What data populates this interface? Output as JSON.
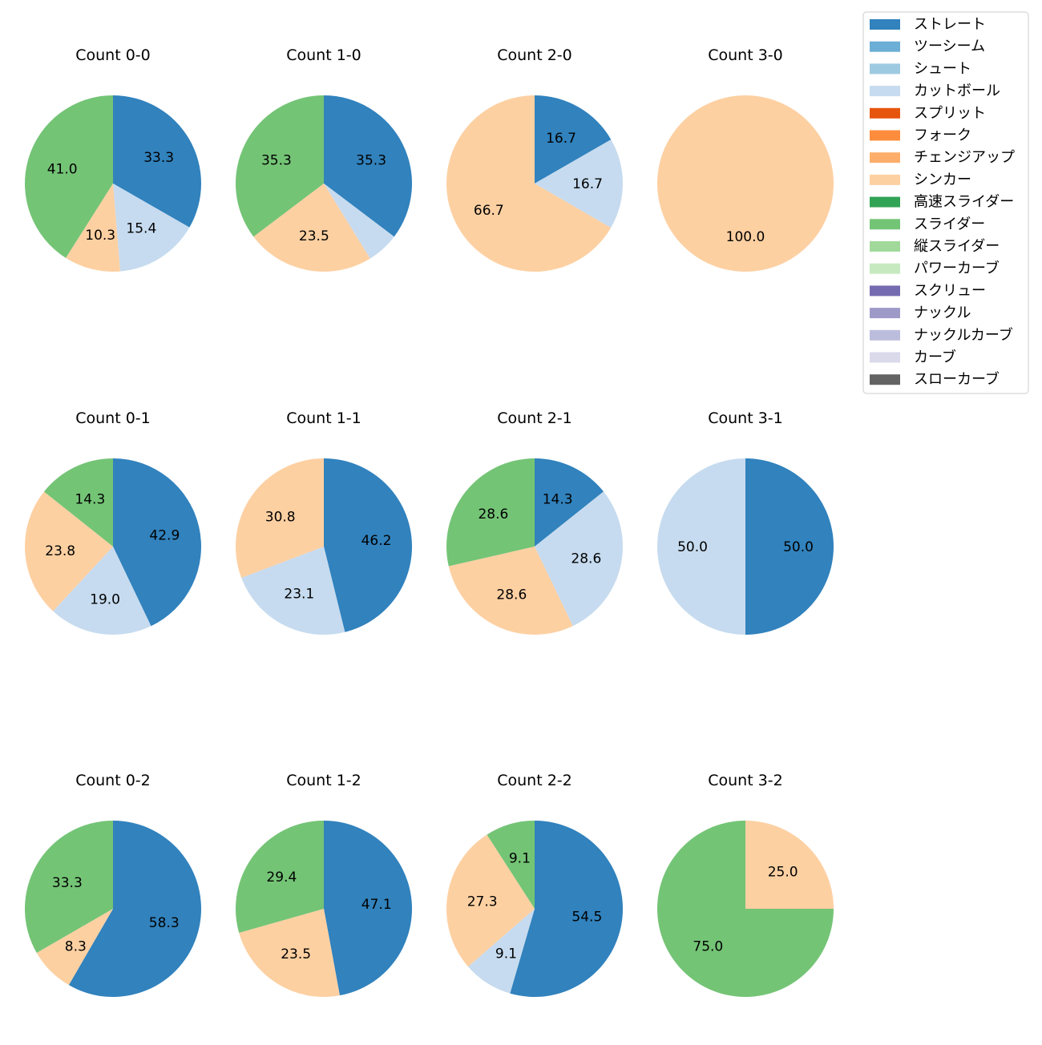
{
  "chart_data": {
    "type": "pie",
    "legend": {
      "position": "top-right",
      "entries": [
        {
          "name": "ストレート",
          "color": "#3182bd"
        },
        {
          "name": "ツーシーム",
          "color": "#6baed6"
        },
        {
          "name": "シュート",
          "color": "#9ecae1"
        },
        {
          "name": "カットボール",
          "color": "#c6dbef"
        },
        {
          "name": "スプリット",
          "color": "#e6550d"
        },
        {
          "name": "フォーク",
          "color": "#fd8d3c"
        },
        {
          "name": "チェンジアップ",
          "color": "#fdae6b"
        },
        {
          "name": "シンカー",
          "color": "#fdd0a2"
        },
        {
          "name": "高速スライダー",
          "color": "#31a354"
        },
        {
          "name": "スライダー",
          "color": "#74c476"
        },
        {
          "name": "縦スライダー",
          "color": "#a1d99b"
        },
        {
          "name": "パワーカーブ",
          "color": "#c7e9c0"
        },
        {
          "name": "スクリュー",
          "color": "#756bb1"
        },
        {
          "name": "ナックル",
          "color": "#9e9ac8"
        },
        {
          "name": "ナックルカーブ",
          "color": "#bcbddc"
        },
        {
          "name": "カーブ",
          "color": "#dadaeb"
        },
        {
          "name": "スローカーブ",
          "color": "#636363"
        }
      ]
    },
    "charts": [
      {
        "title": "Count 0-0",
        "slices": [
          {
            "label": "ストレート",
            "value": 33.3,
            "text": "33.3"
          },
          {
            "label": "カットボール",
            "value": 15.4,
            "text": "15.4"
          },
          {
            "label": "シンカー",
            "value": 10.3,
            "text": "10.3"
          },
          {
            "label": "スライダー",
            "value": 41.0,
            "text": "41.0"
          }
        ]
      },
      {
        "title": "Count 1-0",
        "slices": [
          {
            "label": "ストレート",
            "value": 35.3,
            "text": "35.3"
          },
          {
            "label": "カットボール",
            "value": 5.9,
            "text": ""
          },
          {
            "label": "シンカー",
            "value": 23.5,
            "text": "23.5"
          },
          {
            "label": "スライダー",
            "value": 35.3,
            "text": "35.3"
          }
        ]
      },
      {
        "title": "Count 2-0",
        "slices": [
          {
            "label": "ストレート",
            "value": 16.7,
            "text": "16.7"
          },
          {
            "label": "カットボール",
            "value": 16.7,
            "text": "16.7"
          },
          {
            "label": "シンカー",
            "value": 66.7,
            "text": "66.7"
          }
        ]
      },
      {
        "title": "Count 3-0",
        "slices": [
          {
            "label": "シンカー",
            "value": 100.0,
            "text": "100.0"
          }
        ]
      },
      {
        "title": "Count 0-1",
        "slices": [
          {
            "label": "ストレート",
            "value": 42.9,
            "text": "42.9"
          },
          {
            "label": "カットボール",
            "value": 19.0,
            "text": "19.0"
          },
          {
            "label": "シンカー",
            "value": 23.8,
            "text": "23.8"
          },
          {
            "label": "スライダー",
            "value": 14.3,
            "text": "14.3"
          }
        ]
      },
      {
        "title": "Count 1-1",
        "slices": [
          {
            "label": "ストレート",
            "value": 46.2,
            "text": "46.2"
          },
          {
            "label": "カットボール",
            "value": 23.1,
            "text": "23.1"
          },
          {
            "label": "シンカー",
            "value": 30.8,
            "text": "30.8"
          }
        ]
      },
      {
        "title": "Count 2-1",
        "slices": [
          {
            "label": "ストレート",
            "value": 14.3,
            "text": "14.3"
          },
          {
            "label": "カットボール",
            "value": 28.6,
            "text": "28.6"
          },
          {
            "label": "シンカー",
            "value": 28.6,
            "text": "28.6"
          },
          {
            "label": "スライダー",
            "value": 28.6,
            "text": "28.6"
          }
        ]
      },
      {
        "title": "Count 3-1",
        "slices": [
          {
            "label": "ストレート",
            "value": 50.0,
            "text": "50.0"
          },
          {
            "label": "カットボール",
            "value": 50.0,
            "text": "50.0"
          }
        ]
      },
      {
        "title": "Count 0-2",
        "slices": [
          {
            "label": "ストレート",
            "value": 58.3,
            "text": "58.3"
          },
          {
            "label": "シンカー",
            "value": 8.3,
            "text": "8.3"
          },
          {
            "label": "スライダー",
            "value": 33.3,
            "text": "33.3"
          }
        ]
      },
      {
        "title": "Count 1-2",
        "slices": [
          {
            "label": "ストレート",
            "value": 47.1,
            "text": "47.1"
          },
          {
            "label": "シンカー",
            "value": 23.5,
            "text": "23.5"
          },
          {
            "label": "スライダー",
            "value": 29.4,
            "text": "29.4"
          }
        ]
      },
      {
        "title": "Count 2-2",
        "slices": [
          {
            "label": "ストレート",
            "value": 54.5,
            "text": "54.5"
          },
          {
            "label": "カットボール",
            "value": 9.1,
            "text": "9.1"
          },
          {
            "label": "シンカー",
            "value": 27.3,
            "text": "27.3"
          },
          {
            "label": "スライダー",
            "value": 9.1,
            "text": "9.1"
          }
        ]
      },
      {
        "title": "Count 3-2",
        "slices": [
          {
            "label": "シンカー",
            "value": 25.0,
            "text": "25.0"
          },
          {
            "label": "スライダー",
            "value": 75.0,
            "text": "75.0"
          }
        ]
      }
    ]
  }
}
